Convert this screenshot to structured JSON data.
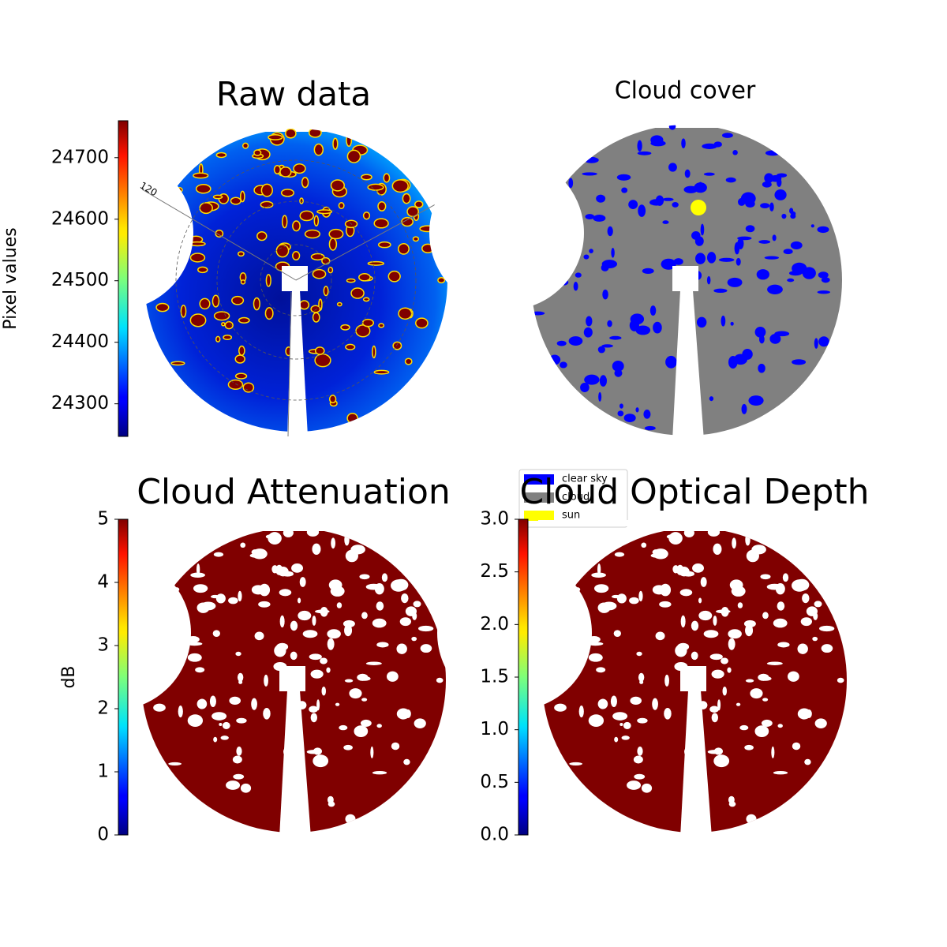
{
  "chart_data": [
    {
      "type": "image",
      "title": "Raw data",
      "colormap": "jet",
      "clim": [
        24247,
        24760
      ],
      "ticks": [
        24300,
        24400,
        24500,
        24600,
        24700
      ],
      "colorbar_label": "Pixel values",
      "annotations": [
        "120"
      ]
    },
    {
      "type": "classification",
      "title": "Cloud cover",
      "legend": [
        {
          "name": "clear sky",
          "color": "#0000ff"
        },
        {
          "name": "cloud",
          "color": "#808080"
        },
        {
          "name": "sun",
          "color": "#ffff00"
        }
      ]
    },
    {
      "type": "image",
      "title": "Cloud Attenuation",
      "colormap": "jet",
      "clim": [
        0,
        5
      ],
      "ticks": [
        0,
        1,
        2,
        3,
        4,
        5
      ],
      "colorbar_label": "dB"
    },
    {
      "type": "image",
      "title": "Cloud Optical Depth",
      "colormap": "jet",
      "clim": [
        0,
        3
      ],
      "ticks": [
        {
          "value": 0,
          "label": "0.0"
        },
        0.5,
        {
          "value": 1,
          "label": "1.0"
        },
        1.5,
        {
          "value": 2,
          "label": "2.0"
        },
        2.5,
        {
          "value": 3,
          "label": "3.0"
        }
      ]
    }
  ]
}
